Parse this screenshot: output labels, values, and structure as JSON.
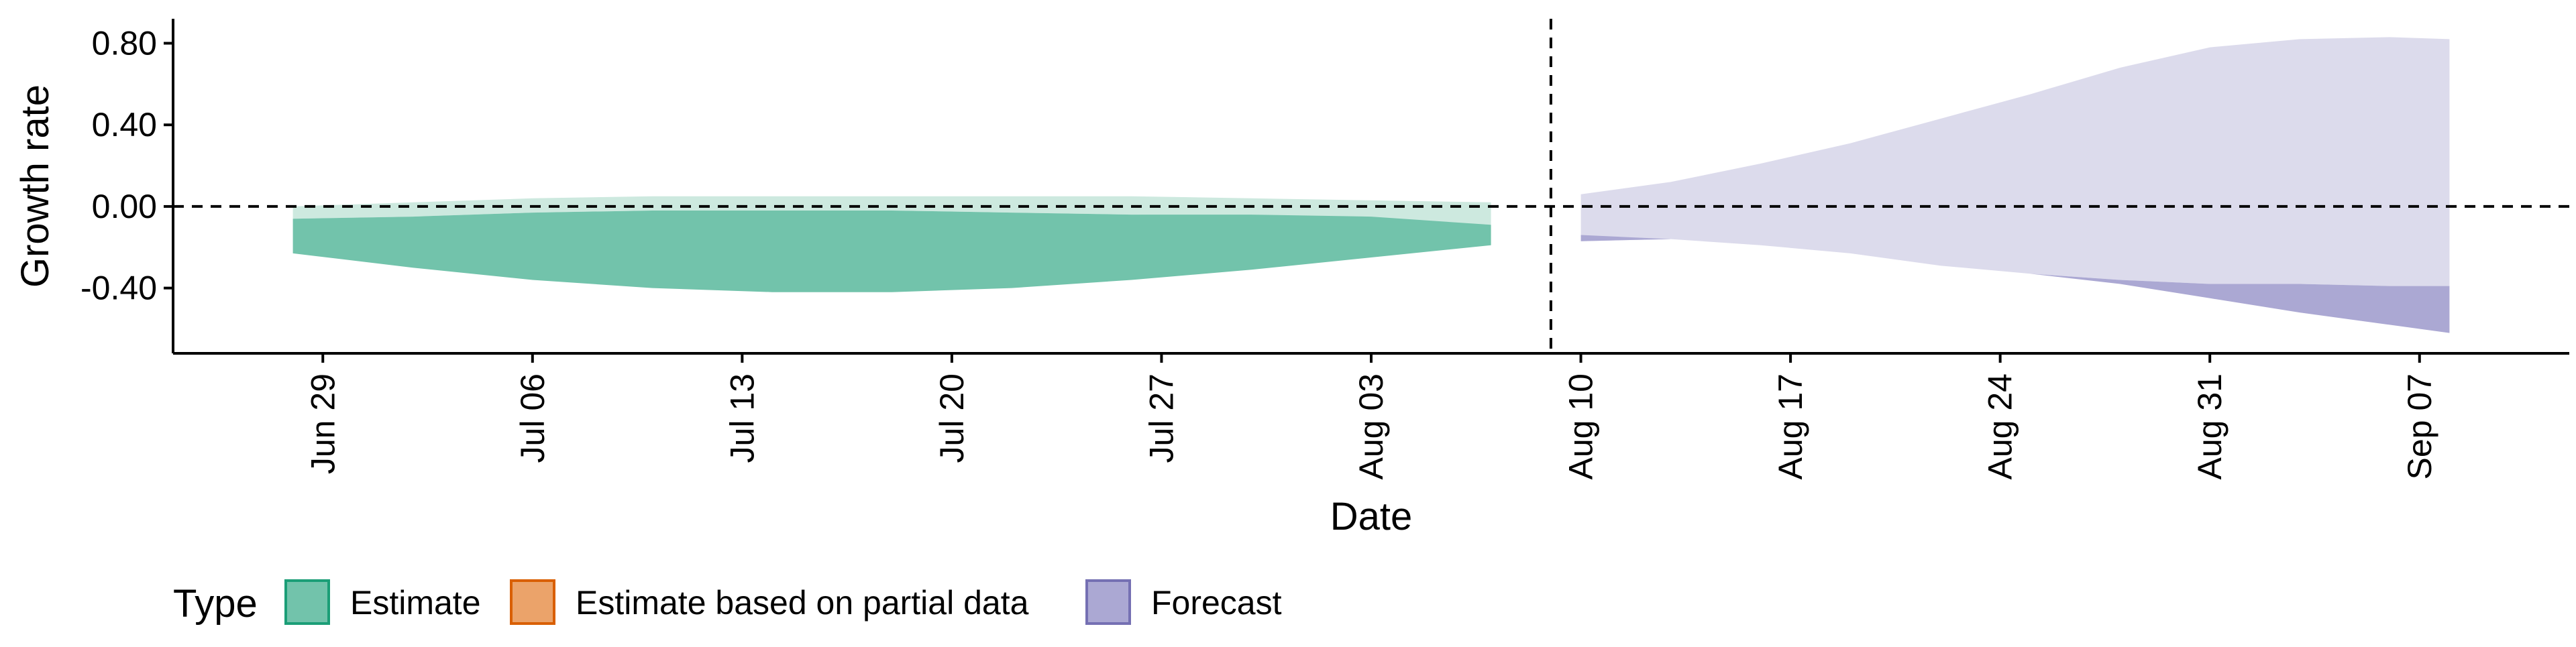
{
  "chart_data": {
    "type": "area",
    "title": "",
    "xlabel": "Date",
    "ylabel": "Growth rate",
    "x_type": "date",
    "xlim": [
      "2024-06-24",
      "2024-09-12"
    ],
    "ylim": [
      -0.72,
      0.92
    ],
    "y_ticks": [
      -0.4,
      0.0,
      0.4,
      0.8
    ],
    "y_tick_labels": [
      "-0.40",
      "0.00",
      "0.40",
      "0.80"
    ],
    "x_ticks": [
      "2024-06-29",
      "2024-07-06",
      "2024-07-13",
      "2024-07-20",
      "2024-07-27",
      "2024-08-03",
      "2024-08-10",
      "2024-08-17",
      "2024-08-24",
      "2024-08-31",
      "2024-09-07"
    ],
    "x_tick_labels": [
      "Jun 29",
      "Jul 06",
      "Jul 13",
      "Jul 20",
      "Jul 27",
      "Aug 03",
      "Aug 10",
      "Aug 17",
      "Aug 24",
      "Aug 31",
      "Sep 07"
    ],
    "reference_lines": {
      "horizontal_y": 0.0,
      "vertical_x": "2024-08-09"
    },
    "grid": false,
    "legend": {
      "title": "Type",
      "position": "bottom-left",
      "entries": [
        {
          "label": "Estimate",
          "fill": "#72c3ab",
          "border": "#1b9e77"
        },
        {
          "label": "Estimate based on partial data",
          "fill": "#eba36a",
          "border": "#d95f02"
        },
        {
          "label": "Forecast",
          "fill": "#aba8d3",
          "border": "#7570b3"
        }
      ]
    },
    "series": [
      {
        "name": "Estimate",
        "color": "#72c3ab",
        "outer_color": "#cde9df",
        "x": [
          "2024-06-28",
          "2024-07-02",
          "2024-07-06",
          "2024-07-10",
          "2024-07-14",
          "2024-07-18",
          "2024-07-22",
          "2024-07-26",
          "2024-07-30",
          "2024-08-03",
          "2024-08-07"
        ],
        "outer_upper": [
          0.0,
          0.02,
          0.04,
          0.05,
          0.05,
          0.05,
          0.05,
          0.05,
          0.04,
          0.03,
          0.02
        ],
        "outer_lower": [
          -0.06,
          -0.05,
          -0.03,
          -0.02,
          -0.02,
          -0.02,
          -0.03,
          -0.04,
          -0.05,
          -0.06,
          -0.09
        ],
        "inner_upper": [
          -0.06,
          -0.05,
          -0.03,
          -0.02,
          -0.02,
          -0.02,
          -0.03,
          -0.04,
          -0.04,
          -0.05,
          -0.09
        ],
        "inner_lower": [
          -0.23,
          -0.3,
          -0.36,
          -0.4,
          -0.42,
          -0.42,
          -0.4,
          -0.36,
          -0.31,
          -0.25,
          -0.19
        ]
      },
      {
        "name": "Forecast",
        "color": "#aba8d3",
        "outer_color": "#dcdbec",
        "x": [
          "2024-08-10",
          "2024-08-13",
          "2024-08-16",
          "2024-08-19",
          "2024-08-22",
          "2024-08-25",
          "2024-08-28",
          "2024-08-31",
          "2024-09-03",
          "2024-09-06",
          "2024-09-08"
        ],
        "outer_upper": [
          0.06,
          0.12,
          0.21,
          0.31,
          0.43,
          0.55,
          0.68,
          0.78,
          0.82,
          0.83,
          0.82
        ],
        "outer_lower": [
          -0.17,
          -0.16,
          -0.19,
          -0.23,
          -0.29,
          -0.33,
          -0.36,
          -0.38,
          -0.38,
          -0.39,
          -0.39
        ],
        "inner_upper": [
          -0.17,
          -0.16,
          -0.19,
          -0.23,
          -0.29,
          -0.33,
          -0.36,
          -0.38,
          -0.38,
          -0.39,
          -0.39
        ],
        "inner_lower": [
          -0.14,
          -0.16,
          -0.19,
          -0.23,
          -0.29,
          -0.33,
          -0.38,
          -0.45,
          -0.52,
          -0.58,
          -0.62
        ]
      }
    ]
  }
}
